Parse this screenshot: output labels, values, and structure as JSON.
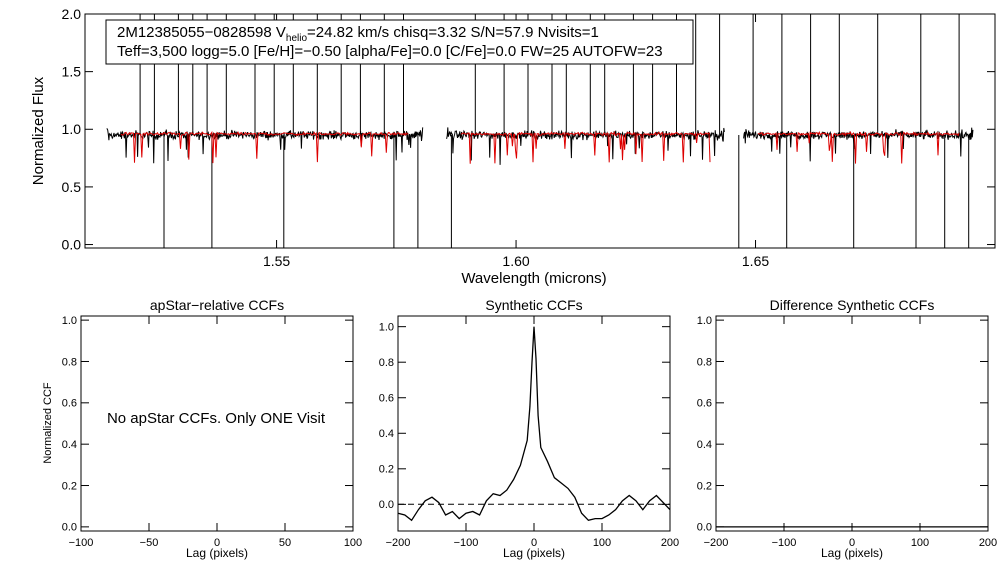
{
  "chart_data": [
    {
      "type": "line",
      "id": "spectrum",
      "title_line1": "2M12385055−0828598  V",
      "title_sub": "helio",
      "title_line1_rest": "=24.82 km/s  chisq=3.32  S/N=57.9  Nvisits=1",
      "title_line2": "Teff=3,500 logg=5.0 [Fe/H]=−0.50 [alpha/Fe]=0.0 [C/Fe]=0.0 FW=25 AUTOFW=23",
      "xlabel": "Wavelength (microns)",
      "ylabel": "Normalized Flux",
      "xlim": [
        1.51,
        1.7
      ],
      "ylim": [
        -0.03,
        2.0
      ],
      "xticks": [
        1.55,
        1.6,
        1.65
      ],
      "xtick_labels": [
        "1.55",
        "1.60",
        "1.65"
      ],
      "yticks": [
        0.0,
        0.5,
        1.0,
        1.5,
        2.0
      ],
      "ytick_labels": [
        "0.0",
        "0.5",
        "1.0",
        "1.5",
        "2.0"
      ],
      "chip_ranges": [
        [
          1.5145,
          1.5805
        ],
        [
          1.5855,
          1.6435
        ],
        [
          1.6475,
          1.6955
        ]
      ],
      "series": [
        {
          "name": "observed",
          "color": "#000000"
        },
        {
          "name": "model",
          "color": "#dd0000"
        }
      ],
      "spikes_up": [
        1.5215,
        1.5245,
        1.5295,
        1.5325,
        1.5355,
        1.5395,
        1.5455,
        1.5495,
        1.5535,
        1.5585,
        1.5635,
        1.5675,
        1.5725,
        1.5765,
        1.5915,
        1.5975,
        1.6025,
        1.6075,
        1.6105,
        1.6155,
        1.6185,
        1.6245,
        1.6285,
        1.6335,
        1.6375,
        1.6425,
        1.6495,
        1.6555,
        1.6615,
        1.6675,
        1.6755,
        1.6845,
        1.6925
      ],
      "spikes_down": [
        1.5265,
        1.5365,
        1.5515,
        1.5745,
        1.5795,
        1.5865,
        1.6465,
        1.6565,
        1.6705,
        1.6835,
        1.6895,
        1.6945
      ]
    },
    {
      "type": "line",
      "id": "apstar-ccf",
      "title": "apStar−relative CCFs",
      "xlabel": "Lag (pixels)",
      "ylabel": "Normalized CCF",
      "xlim": [
        -100,
        100
      ],
      "ylim": [
        -0.02,
        1.02
      ],
      "xticks": [
        -100,
        -50,
        0,
        50,
        100
      ],
      "xtick_labels": [
        "−100",
        "−50",
        "0",
        "50",
        "100"
      ],
      "yticks": [
        0.0,
        0.2,
        0.4,
        0.6,
        0.8,
        1.0
      ],
      "ytick_labels": [
        "0.0",
        "0.2",
        "0.4",
        "0.6",
        "0.8",
        "1.0"
      ],
      "message": "No apStar CCFs.  Only ONE Visit"
    },
    {
      "type": "line",
      "id": "synthetic-ccf",
      "title": "Synthetic CCFs",
      "xlabel": "Lag (pixels)",
      "xlim": [
        -200,
        200
      ],
      "ylim": [
        -0.15,
        1.06
      ],
      "xticks": [
        -200,
        -100,
        0,
        100,
        200
      ],
      "xtick_labels": [
        "−200",
        "−100",
        "0",
        "100",
        "200"
      ],
      "yticks": [
        0.0,
        0.2,
        0.4,
        0.6,
        0.8,
        1.0
      ],
      "ytick_labels": [
        "0.0",
        "0.2",
        "0.4",
        "0.6",
        "0.8",
        "1.0"
      ],
      "zero_line": 0.0,
      "x": [
        -200,
        -190,
        -180,
        -170,
        -160,
        -150,
        -140,
        -130,
        -120,
        -110,
        -100,
        -90,
        -80,
        -70,
        -60,
        -50,
        -40,
        -30,
        -20,
        -10,
        -6,
        -3,
        0,
        3,
        6,
        10,
        20,
        30,
        40,
        50,
        60,
        70,
        80,
        90,
        100,
        110,
        120,
        130,
        140,
        150,
        160,
        170,
        180,
        190,
        200
      ],
      "values": [
        -0.05,
        -0.06,
        -0.09,
        -0.03,
        0.02,
        0.04,
        0.01,
        -0.06,
        -0.04,
        -0.08,
        -0.05,
        -0.04,
        -0.06,
        0.02,
        0.06,
        0.05,
        0.08,
        0.14,
        0.22,
        0.36,
        0.55,
        0.8,
        1.0,
        0.82,
        0.5,
        0.32,
        0.24,
        0.15,
        0.12,
        0.09,
        0.04,
        -0.05,
        -0.09,
        -0.08,
        -0.08,
        -0.06,
        -0.03,
        0.02,
        0.05,
        0.02,
        -0.03,
        0.02,
        0.05,
        0.01,
        -0.03
      ]
    },
    {
      "type": "line",
      "id": "difference-ccf",
      "title": "Difference Synthetic CCFs",
      "xlabel": "Lag (pixels)",
      "xlim": [
        -200,
        200
      ],
      "ylim": [
        -0.02,
        1.02
      ],
      "xticks": [
        -200,
        -100,
        0,
        100,
        200
      ],
      "xtick_labels": [
        "−200",
        "−100",
        "0",
        "100",
        "200"
      ],
      "yticks": [
        0.0,
        0.2,
        0.4,
        0.6,
        0.8,
        1.0
      ],
      "ytick_labels": [
        "0.0",
        "0.2",
        "0.4",
        "0.6",
        "0.8",
        "1.0"
      ],
      "x": [
        -200,
        200
      ],
      "values": [
        0.0,
        0.0
      ]
    }
  ]
}
